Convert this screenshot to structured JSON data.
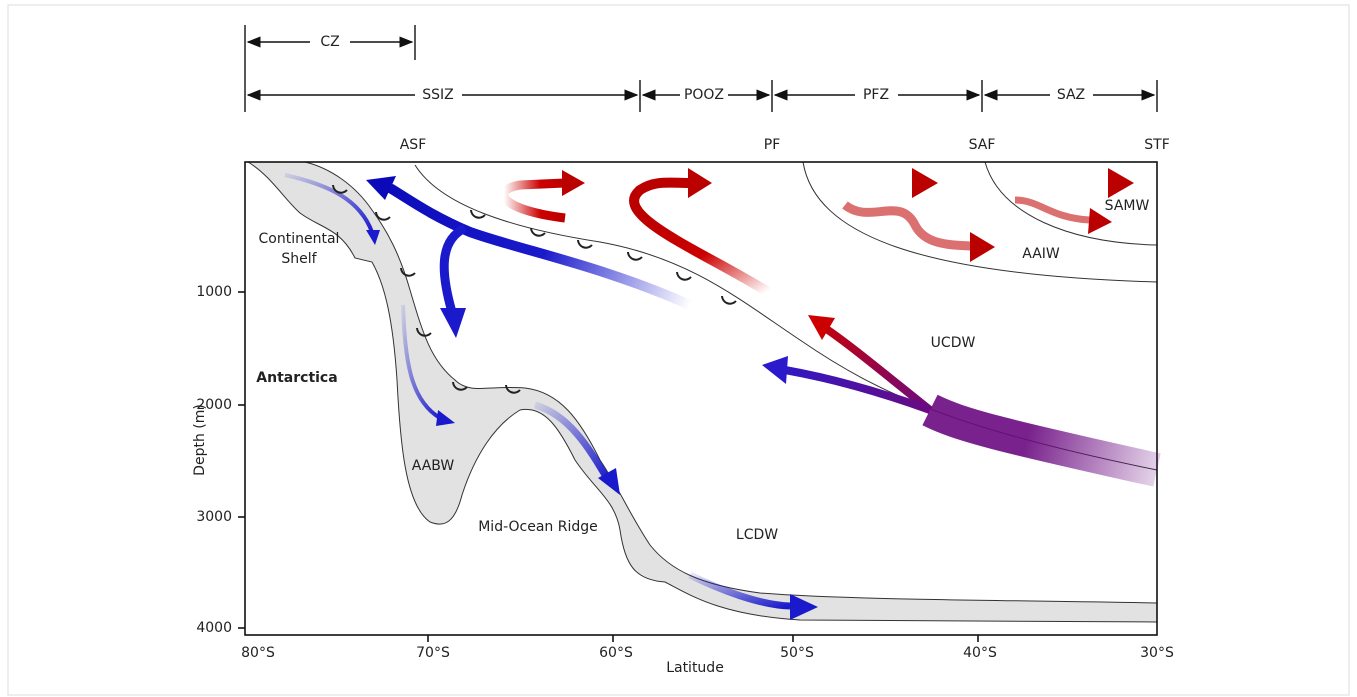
{
  "zones": [
    "CZ",
    "SSIZ",
    "POOZ",
    "PFZ",
    "SAZ"
  ],
  "fronts": [
    "ASF",
    "PF",
    "SAF",
    "STF"
  ],
  "water_masses": {
    "continental_shelf": [
      "Continental",
      "Shelf"
    ],
    "antarctica": "Antarctica",
    "aabw": "AABW",
    "ridge": "Mid-Ocean Ridge",
    "lcdw": "LCDW",
    "ucdw": "UCDW",
    "aaiw": "AAIW",
    "samw": "SAMW"
  },
  "axes": {
    "y_title": "Depth (m)",
    "y_ticks": [
      "1000",
      "2000",
      "3000",
      "4000"
    ],
    "x_title": "Latitude",
    "x_ticks": [
      "80°S",
      "70°S",
      "60°S",
      "50°S",
      "40°S",
      "30°S"
    ]
  }
}
